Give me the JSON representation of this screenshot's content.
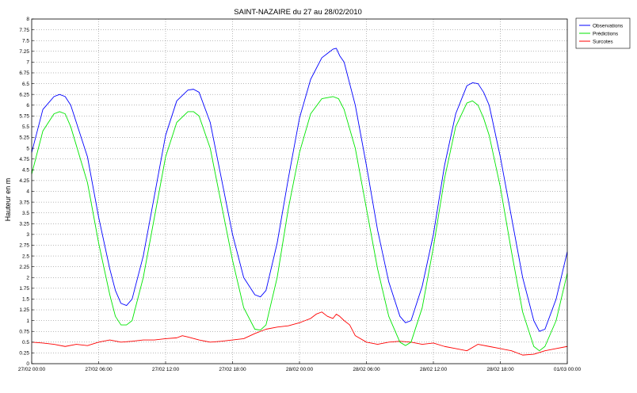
{
  "chart_data": {
    "type": "line",
    "title": "SAINT-NAZAIRE du 27 au 28/02/2010",
    "xlabel": "",
    "ylabel": "Hauteur en m",
    "x_unit": "hours since 27/02 00:00",
    "xlim": [
      0,
      48
    ],
    "ylim": [
      0,
      8
    ],
    "xticks": [
      {
        "x": 0,
        "label": "27/02 00:00"
      },
      {
        "x": 6,
        "label": "27/02 06:00"
      },
      {
        "x": 12,
        "label": "27/02 12:00"
      },
      {
        "x": 18,
        "label": "27/02 18:00"
      },
      {
        "x": 24,
        "label": "28/02 00:00"
      },
      {
        "x": 30,
        "label": "28/02 06:00"
      },
      {
        "x": 36,
        "label": "28/02 12:00"
      },
      {
        "x": 42,
        "label": "28/02 18:00"
      },
      {
        "x": 48,
        "label": "01/03 00:00"
      }
    ],
    "yticks": [
      "0",
      "0.25",
      "0.5",
      "0.75",
      "1",
      "1.25",
      "1.5",
      "1.75",
      "2",
      "2.25",
      "2.5",
      "2.75",
      "3",
      "3.25",
      "3.5",
      "3.75",
      "4",
      "4.25",
      "4.5",
      "4.75",
      "5",
      "5.25",
      "5.5",
      "5.75",
      "6",
      "6.25",
      "6.5",
      "6.75",
      "7",
      "7.25",
      "7.5",
      "7.75",
      "8"
    ],
    "grid": true,
    "legend_position": "outside-top-right",
    "series": [
      {
        "name": "Observations",
        "color": "#0000ff",
        "x": [
          0,
          1,
          2,
          2.5,
          3,
          3.5,
          5,
          6,
          7,
          7.5,
          8,
          8.5,
          9,
          10,
          11,
          12,
          13,
          14,
          14.5,
          15,
          16,
          17,
          18,
          19,
          20,
          20.5,
          21,
          22,
          23,
          24,
          25,
          26,
          26.5,
          27,
          27.3,
          27.6,
          28,
          29,
          30,
          31,
          32,
          33,
          33.5,
          34,
          35,
          36,
          37,
          38,
          39,
          39.5,
          40,
          40.5,
          41,
          42,
          43,
          44,
          45,
          45.5,
          46,
          47,
          48
        ],
        "y": [
          4.9,
          5.9,
          6.2,
          6.25,
          6.2,
          6.0,
          4.8,
          3.4,
          2.2,
          1.7,
          1.4,
          1.35,
          1.5,
          2.5,
          3.9,
          5.3,
          6.1,
          6.35,
          6.37,
          6.3,
          5.6,
          4.3,
          3.0,
          2.0,
          1.6,
          1.55,
          1.7,
          2.8,
          4.3,
          5.7,
          6.6,
          7.1,
          7.2,
          7.3,
          7.32,
          7.15,
          7.0,
          6.0,
          4.6,
          3.1,
          1.9,
          1.1,
          0.95,
          1.0,
          1.8,
          3.0,
          4.6,
          5.8,
          6.45,
          6.52,
          6.5,
          6.3,
          6.0,
          4.8,
          3.4,
          2.0,
          1.0,
          0.75,
          0.8,
          1.5,
          2.6
        ]
      },
      {
        "name": "Prédictions",
        "color": "#00e600",
        "x": [
          0,
          1,
          2,
          2.5,
          3,
          3.5,
          5,
          6,
          7,
          7.5,
          8,
          8.5,
          9,
          10,
          11,
          12,
          13,
          14,
          14.5,
          15,
          16,
          17,
          18,
          19,
          20,
          20.5,
          21,
          22,
          23,
          24,
          25,
          26,
          27,
          27.5,
          28,
          29,
          30,
          31,
          32,
          33,
          33.5,
          34,
          35,
          36,
          37,
          38,
          39,
          39.5,
          40,
          40.5,
          41,
          42,
          43,
          44,
          45,
          45.5,
          46,
          47,
          48
        ],
        "y": [
          4.4,
          5.4,
          5.8,
          5.85,
          5.8,
          5.5,
          4.2,
          2.8,
          1.6,
          1.1,
          0.9,
          0.9,
          1.0,
          2.0,
          3.4,
          4.8,
          5.6,
          5.85,
          5.85,
          5.75,
          5.0,
          3.7,
          2.4,
          1.3,
          0.8,
          0.78,
          0.9,
          2.0,
          3.6,
          4.9,
          5.8,
          6.15,
          6.2,
          6.15,
          5.9,
          5.0,
          3.6,
          2.2,
          1.1,
          0.5,
          0.42,
          0.5,
          1.3,
          2.7,
          4.3,
          5.5,
          6.05,
          6.1,
          6.0,
          5.7,
          5.3,
          4.1,
          2.6,
          1.2,
          0.4,
          0.3,
          0.4,
          1.0,
          2.1
        ]
      },
      {
        "name": "Surcotes",
        "color": "#ff0000",
        "x": [
          0,
          1,
          2,
          3,
          4,
          5,
          6,
          7,
          8,
          9,
          10,
          11,
          12,
          13,
          13.5,
          14,
          15,
          16,
          17,
          18,
          19,
          20,
          21,
          22,
          23,
          24,
          24.5,
          25,
          25.5,
          26,
          26.5,
          27,
          27.3,
          27.6,
          28,
          28.5,
          29,
          30,
          31,
          32,
          33,
          34,
          35,
          36,
          37,
          38,
          39,
          40,
          41,
          42,
          43,
          44,
          45,
          46,
          47,
          48
        ],
        "y": [
          0.5,
          0.48,
          0.45,
          0.4,
          0.45,
          0.42,
          0.5,
          0.55,
          0.5,
          0.52,
          0.55,
          0.55,
          0.58,
          0.6,
          0.65,
          0.62,
          0.55,
          0.5,
          0.52,
          0.55,
          0.58,
          0.7,
          0.8,
          0.85,
          0.88,
          0.95,
          1.0,
          1.05,
          1.15,
          1.2,
          1.1,
          1.05,
          1.15,
          1.1,
          1.0,
          0.9,
          0.65,
          0.5,
          0.45,
          0.5,
          0.52,
          0.5,
          0.45,
          0.48,
          0.4,
          0.35,
          0.3,
          0.45,
          0.4,
          0.35,
          0.3,
          0.2,
          0.22,
          0.3,
          0.35,
          0.4
        ]
      }
    ]
  }
}
